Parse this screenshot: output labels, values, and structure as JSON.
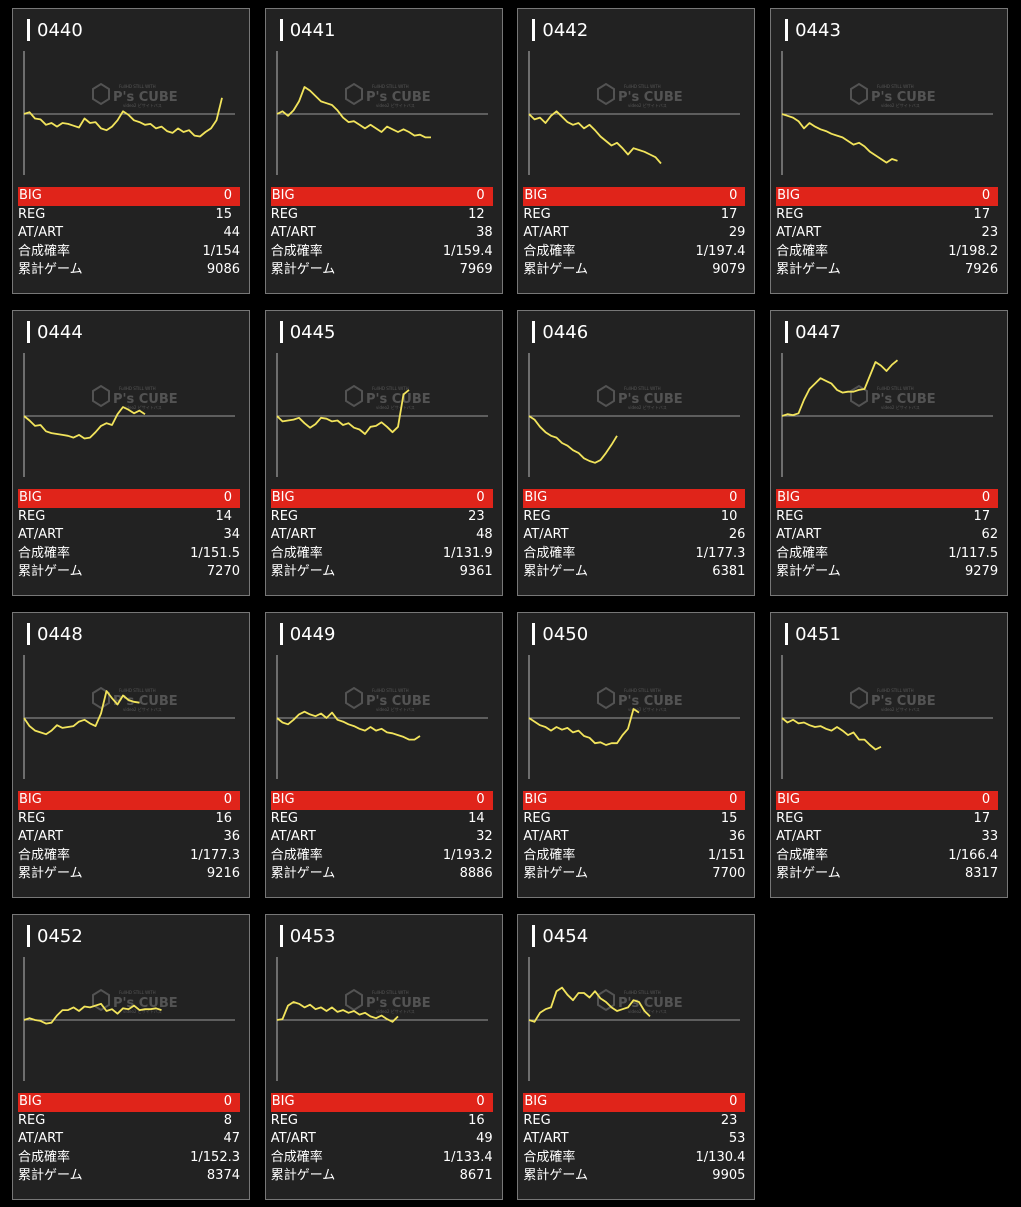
{
  "labels": {
    "big": "BIG",
    "reg": "REG",
    "at_art": "AT/ART",
    "prob": "合成確率",
    "games": "累計ゲーム",
    "logo_text": "P's CUBE",
    "logo_small_top": "FullHD STILL WITH",
    "logo_small_bottom": "video2 ピサイトバス"
  },
  "colors": {
    "background": "#000000",
    "card": "#222222",
    "card_border": "#777777",
    "big_row": "#e0241a",
    "line": "#f2e45c",
    "baseline": "#9a9a9a",
    "axis": "#bbbbbb"
  },
  "machines": [
    {
      "number": "0440",
      "big": "0",
      "reg": "15",
      "at_art": "44",
      "prob": "1/154",
      "games": "9086",
      "trend": [
        0,
        2,
        -5,
        -6,
        -12,
        -10,
        -14,
        -10,
        -11,
        -13,
        -15,
        -5,
        -10,
        -9,
        -16,
        -18,
        -14,
        -7,
        3,
        -1,
        -7,
        -9,
        -12,
        -11,
        -16,
        -14,
        -19,
        -21,
        -16,
        -20,
        -18,
        -24,
        -25,
        -20,
        -16,
        -7,
        18
      ]
    },
    {
      "number": "0441",
      "big": "0",
      "reg": "12",
      "at_art": "38",
      "prob": "1/159.4",
      "games": "7969",
      "trend": [
        0,
        3,
        -2,
        4,
        14,
        30,
        26,
        20,
        14,
        12,
        10,
        4,
        -4,
        -9,
        -8,
        -12,
        -16,
        -12,
        -16,
        -20,
        -14,
        -17,
        -20,
        -17,
        -20,
        -24,
        -23,
        -26,
        -26
      ]
    },
    {
      "number": "0442",
      "big": "0",
      "reg": "17",
      "at_art": "29",
      "prob": "1/197.4",
      "games": "9079",
      "trend": [
        0,
        -6,
        -4,
        -10,
        -2,
        3,
        -3,
        -9,
        -12,
        -10,
        -16,
        -12,
        -18,
        -25,
        -30,
        -35,
        -32,
        -38,
        -45,
        -38,
        -40,
        -42,
        -45,
        -48,
        -55
      ]
    },
    {
      "number": "0443",
      "big": "0",
      "reg": "17",
      "at_art": "23",
      "prob": "1/198.2",
      "games": "7926",
      "trend": [
        0,
        -2,
        -4,
        -8,
        -16,
        -10,
        -14,
        -17,
        -19,
        -22,
        -24,
        -26,
        -30,
        -34,
        -32,
        -36,
        -42,
        -46,
        -50,
        -54,
        -50,
        -52
      ]
    },
    {
      "number": "0444",
      "big": "0",
      "reg": "14",
      "at_art": "34",
      "prob": "1/151.5",
      "games": "7270",
      "trend": [
        0,
        -5,
        -11,
        -10,
        -17,
        -19,
        -20,
        -21,
        -22,
        -24,
        -21,
        -25,
        -24,
        -18,
        -11,
        -8,
        -10,
        2,
        10,
        7,
        3,
        6,
        2
      ]
    },
    {
      "number": "0445",
      "big": "0",
      "reg": "23",
      "at_art": "48",
      "prob": "1/131.9",
      "games": "9361",
      "trend": [
        0,
        -6,
        -5,
        -4,
        -2,
        -8,
        -13,
        -9,
        -2,
        -3,
        -6,
        -5,
        -10,
        -8,
        -13,
        -15,
        -20,
        -12,
        -11,
        -7,
        -12,
        -18,
        -12,
        24,
        29
      ]
    },
    {
      "number": "0446",
      "big": "0",
      "reg": "10",
      "at_art": "26",
      "prob": "1/177.3",
      "games": "6381",
      "trend": [
        0,
        -4,
        -12,
        -18,
        -22,
        -24,
        -30,
        -33,
        -38,
        -41,
        -47,
        -50,
        -52,
        -49,
        -41,
        -32,
        -22
      ]
    },
    {
      "number": "0447",
      "big": "0",
      "reg": "17",
      "at_art": "62",
      "prob": "1/117.5",
      "games": "9279",
      "trend": [
        0,
        2,
        1,
        3,
        18,
        30,
        36,
        42,
        39,
        36,
        29,
        26,
        27,
        27,
        29,
        30,
        45,
        60,
        56,
        50,
        57,
        62
      ]
    },
    {
      "number": "0448",
      "big": "0",
      "reg": "16",
      "at_art": "36",
      "prob": "1/177.3",
      "games": "9216",
      "trend": [
        0,
        -9,
        -14,
        -16,
        -18,
        -14,
        -8,
        -11,
        -10,
        -9,
        -4,
        -2,
        -6,
        -9,
        5,
        30,
        22,
        15,
        25,
        20,
        18,
        17
      ]
    },
    {
      "number": "0449",
      "big": "0",
      "reg": "14",
      "at_art": "32",
      "prob": "1/193.2",
      "games": "8886",
      "trend": [
        0,
        -5,
        -7,
        -2,
        4,
        7,
        4,
        2,
        5,
        0,
        6,
        -2,
        -4,
        -7,
        -9,
        -12,
        -14,
        -10,
        -14,
        -12,
        -16,
        -17,
        -19,
        -21,
        -24,
        -24,
        -20
      ]
    },
    {
      "number": "0450",
      "big": "0",
      "reg": "15",
      "at_art": "36",
      "prob": "1/151",
      "games": "7700",
      "trend": [
        0,
        -4,
        -8,
        -10,
        -14,
        -10,
        -13,
        -11,
        -16,
        -14,
        -20,
        -22,
        -28,
        -27,
        -30,
        -28,
        -28,
        -19,
        -12,
        10,
        6
      ]
    },
    {
      "number": "0451",
      "big": "0",
      "reg": "17",
      "at_art": "33",
      "prob": "1/166.4",
      "games": "8317",
      "trend": [
        0,
        -5,
        -2,
        -6,
        -5,
        -8,
        -10,
        -9,
        -12,
        -14,
        -10,
        -14,
        -19,
        -16,
        -24,
        -24,
        -30,
        -35,
        -32
      ]
    },
    {
      "number": "0452",
      "big": "0",
      "reg": "8",
      "at_art": "47",
      "prob": "1/152.3",
      "games": "8374",
      "trend": [
        0,
        2,
        0,
        -1,
        -4,
        -3,
        5,
        11,
        11,
        14,
        10,
        15,
        14,
        16,
        18,
        10,
        12,
        7,
        13,
        12,
        16,
        11,
        12,
        12,
        13,
        11
      ]
    },
    {
      "number": "0453",
      "big": "0",
      "reg": "16",
      "at_art": "49",
      "prob": "1/133.4",
      "games": "8671",
      "trend": [
        0,
        1,
        16,
        20,
        18,
        14,
        17,
        12,
        14,
        10,
        14,
        9,
        11,
        8,
        10,
        6,
        8,
        4,
        2,
        5,
        1,
        -2,
        4
      ]
    },
    {
      "number": "0454",
      "big": "0",
      "reg": "23",
      "at_art": "53",
      "prob": "1/130.4",
      "games": "9905",
      "trend": [
        0,
        -2,
        8,
        12,
        14,
        32,
        36,
        28,
        22,
        30,
        30,
        25,
        32,
        24,
        20,
        14,
        10,
        12,
        14,
        22,
        20,
        10,
        4
      ]
    }
  ]
}
